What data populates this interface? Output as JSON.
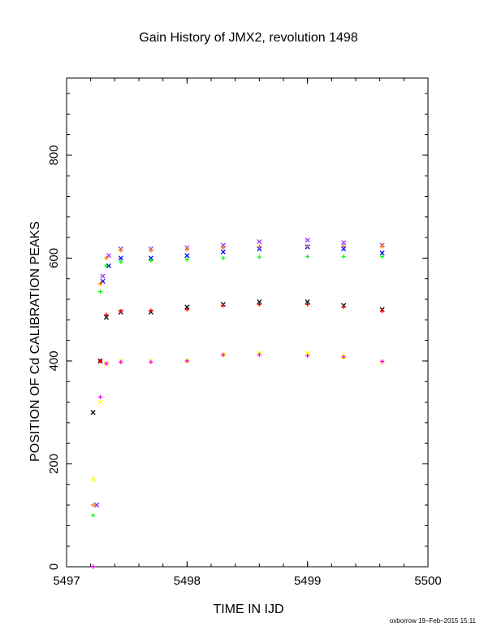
{
  "chart_data": {
    "type": "scatter",
    "title": "Gain History of JMX2, revolution 1498",
    "xlabel": "TIME IN IJD",
    "ylabel": "POSITION OF Cd CALIBRATION PEAKS",
    "xlim": [
      5497,
      5500
    ],
    "ylim": [
      0,
      950
    ],
    "xticks": [
      "5497",
      "5498",
      "5499",
      "5500"
    ],
    "yticks": [
      "0",
      "200",
      "400",
      "600",
      "800"
    ],
    "grid": false,
    "legend": "none",
    "series": [
      {
        "marker": "x",
        "color": "#0000ff",
        "x": [
          5497.25,
          5497.3,
          5497.35,
          5497.45,
          5497.7,
          5498.0,
          5498.3,
          5498.6,
          5499.0,
          5499.3,
          5499.62
        ],
        "y": [
          120,
          555,
          585,
          600,
          600,
          605,
          612,
          618,
          622,
          618,
          610
        ]
      },
      {
        "marker": "x",
        "color": "#9933ff",
        "x": [
          5497.25,
          5497.3,
          5497.35,
          5497.45,
          5497.7,
          5498.0,
          5498.3,
          5498.6,
          5499.0,
          5499.3,
          5499.62
        ],
        "y": [
          120,
          565,
          605,
          618,
          618,
          620,
          625,
          632,
          635,
          630,
          625
        ]
      },
      {
        "marker": "x",
        "color": "#000000",
        "x": [
          5497.22,
          5497.28,
          5497.33,
          5497.45,
          5497.7,
          5498.0,
          5498.3,
          5498.6,
          5499.0,
          5499.3,
          5499.62
        ],
        "y": [
          300,
          400,
          485,
          495,
          495,
          505,
          510,
          515,
          515,
          508,
          500
        ]
      },
      {
        "marker": "x",
        "color": "#ffff00",
        "x": [
          5497.22,
          5497.28,
          5497.33,
          5497.45,
          5497.7,
          5498.0,
          5498.3,
          5498.6,
          5499.0,
          5499.3,
          5499.62
        ],
        "y": [
          170,
          320,
          395,
          400,
          400,
          400,
          412,
          415,
          415,
          408,
          398
        ]
      },
      {
        "marker": "+",
        "color": "#ff8000",
        "x": [
          5497.22,
          5497.28,
          5497.33,
          5497.45,
          5497.7,
          5498.0,
          5498.3,
          5498.6,
          5499.0,
          5499.3,
          5499.62
        ],
        "y": [
          120,
          550,
          600,
          615,
          615,
          617,
          620,
          622,
          623,
          623,
          623
        ]
      },
      {
        "marker": "+",
        "color": "#00ff00",
        "x": [
          5497.22,
          5497.28,
          5497.33,
          5497.45,
          5497.7,
          5498.0,
          5498.3,
          5498.6,
          5499.0,
          5499.3,
          5499.62
        ],
        "y": [
          100,
          535,
          585,
          593,
          595,
          597,
          600,
          602,
          603,
          603,
          603
        ]
      },
      {
        "marker": "+",
        "color": "#ff0000",
        "x": [
          5497.22,
          5497.28,
          5497.33,
          5497.45,
          5497.7,
          5498.0,
          5498.3,
          5498.6,
          5499.0,
          5499.3,
          5499.62
        ],
        "y": [
          0,
          400,
          490,
          497,
          498,
          500,
          508,
          510,
          510,
          505,
          497
        ]
      },
      {
        "marker": "+",
        "color": "#ff00ff",
        "x": [
          5497.22,
          5497.28,
          5497.33,
          5497.45,
          5497.7,
          5498.0,
          5498.3,
          5498.6,
          5499.0,
          5499.3,
          5499.62
        ],
        "y": [
          0,
          330,
          395,
          398,
          398,
          400,
          412,
          412,
          410,
          408,
          399
        ]
      }
    ]
  },
  "footer": "oxborrow 19–Feb–2015 15:11"
}
